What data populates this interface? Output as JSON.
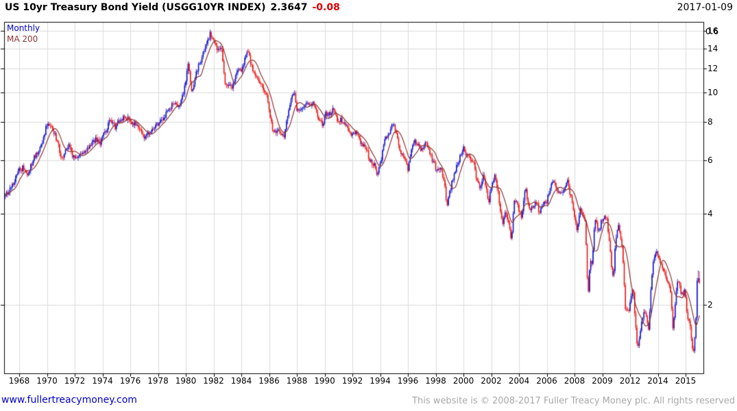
{
  "header": {
    "title": "US 10yr Treasury Bond Yield (USGG10YR INDEX)",
    "value": "2.3647",
    "change": "-0.08",
    "date": "2017-01-09"
  },
  "legend": {
    "series_label": "Monthly",
    "ma_label": "MA 200"
  },
  "footer": {
    "link": "www.fullertreacymoney.com",
    "copyright": "This website is © 2008-2017 Fuller Treacy Money plc. All rights reserved"
  },
  "colors": {
    "up_candle": "#1313cf",
    "down_candle": "#ea1515",
    "ma_line": "#8b3434",
    "legend_series": "#0000bf",
    "legend_ma": "#8b3434",
    "change_text": "#dd0000",
    "grid": "#dcdcdc",
    "border": "#000000",
    "link": "#0000cd",
    "copyright_text": "#a8a8a8"
  },
  "chart_data": {
    "type": "candlestick",
    "title": "US 10yr Treasury Bond Yield (USGG10YR INDEX)",
    "frequency": "Monthly",
    "overlay": "MA 200",
    "last_value": 2.3647,
    "change": -0.08,
    "y_scale": "log",
    "y_ticks": [
      "16",
      "14",
      "12",
      "10",
      "8",
      "6",
      "4",
      "2"
    ],
    "y_tick_values": [
      16,
      14,
      12,
      10,
      8,
      6,
      4,
      2
    ],
    "y_axis_top_overlap_label": "0.6",
    "x_tick_labels": [
      "1968",
      "1970",
      "1972",
      "1974",
      "1976",
      "1978",
      "1980",
      "1982",
      "1984",
      "1986",
      "1988",
      "1990",
      "1992",
      "1994",
      "1996",
      "1998",
      "2000",
      "2002",
      "2004",
      "2006",
      "2008",
      "2009",
      "2012",
      "2014",
      "2015"
    ],
    "x_range_years": [
      1967.0,
      2017.05
    ],
    "y_range": [
      1.19,
      17.0
    ],
    "xlabel": "",
    "ylabel": "",
    "grid": true,
    "legend_position": "top-left",
    "anchors": [
      [
        1967.0,
        4.55
      ],
      [
        1967.33,
        4.85
      ],
      [
        1967.67,
        5.15
      ],
      [
        1968.0,
        5.55
      ],
      [
        1968.25,
        5.65
      ],
      [
        1968.5,
        5.4
      ],
      [
        1968.75,
        5.55
      ],
      [
        1969.0,
        6.05
      ],
      [
        1969.33,
        6.35
      ],
      [
        1969.67,
        6.85
      ],
      [
        1969.92,
        7.65
      ],
      [
        1970.25,
        7.85
      ],
      [
        1970.5,
        7.4
      ],
      [
        1970.75,
        6.85
      ],
      [
        1971.08,
        6.05
      ],
      [
        1971.42,
        6.6
      ],
      [
        1971.58,
        6.75
      ],
      [
        1971.83,
        6.2
      ],
      [
        1972.08,
        6.05
      ],
      [
        1972.42,
        6.2
      ],
      [
        1972.75,
        6.45
      ],
      [
        1973.08,
        6.7
      ],
      [
        1973.5,
        7.05
      ],
      [
        1973.83,
        6.85
      ],
      [
        1974.17,
        7.4
      ],
      [
        1974.58,
        8.2
      ],
      [
        1974.92,
        7.7
      ],
      [
        1975.17,
        7.95
      ],
      [
        1975.67,
        8.4
      ],
      [
        1976.0,
        7.95
      ],
      [
        1976.33,
        7.9
      ],
      [
        1976.67,
        7.6
      ],
      [
        1977.0,
        7.2
      ],
      [
        1977.42,
        7.4
      ],
      [
        1977.83,
        7.7
      ],
      [
        1978.25,
        8.2
      ],
      [
        1978.67,
        8.6
      ],
      [
        1979.0,
        9.1
      ],
      [
        1979.33,
        9.1
      ],
      [
        1979.67,
        9.3
      ],
      [
        1979.92,
        10.4
      ],
      [
        1980.17,
        12.7
      ],
      [
        1980.42,
        10.0
      ],
      [
        1980.67,
        11.2
      ],
      [
        1980.92,
        12.4
      ],
      [
        1981.17,
        13.1
      ],
      [
        1981.42,
        14.3
      ],
      [
        1981.58,
        14.8
      ],
      [
        1981.75,
        15.7
      ],
      [
        1981.92,
        14.9
      ],
      [
        1982.08,
        14.5
      ],
      [
        1982.33,
        13.8
      ],
      [
        1982.58,
        14.0
      ],
      [
        1982.83,
        10.8
      ],
      [
        1983.08,
        10.5
      ],
      [
        1983.33,
        10.5
      ],
      [
        1983.67,
        11.7
      ],
      [
        1984.0,
        11.9
      ],
      [
        1984.25,
        12.8
      ],
      [
        1984.46,
        13.8
      ],
      [
        1984.75,
        12.2
      ],
      [
        1985.0,
        11.5
      ],
      [
        1985.33,
        10.9
      ],
      [
        1985.67,
        10.2
      ],
      [
        1985.92,
        9.4
      ],
      [
        1986.13,
        8.1
      ],
      [
        1986.33,
        7.3
      ],
      [
        1986.58,
        7.5
      ],
      [
        1986.83,
        7.3
      ],
      [
        1987.08,
        7.2
      ],
      [
        1987.33,
        8.4
      ],
      [
        1987.63,
        9.6
      ],
      [
        1987.79,
        10.1
      ],
      [
        1988.0,
        8.8
      ],
      [
        1988.33,
        8.9
      ],
      [
        1988.63,
        9.2
      ],
      [
        1988.92,
        9.1
      ],
      [
        1989.21,
        9.4
      ],
      [
        1989.58,
        8.1
      ],
      [
        1989.88,
        7.9
      ],
      [
        1990.08,
        8.5
      ],
      [
        1990.42,
        8.6
      ],
      [
        1990.63,
        8.9
      ],
      [
        1990.92,
        8.2
      ],
      [
        1991.25,
        8.1
      ],
      [
        1991.58,
        7.9
      ],
      [
        1991.92,
        7.3
      ],
      [
        1992.25,
        7.5
      ],
      [
        1992.58,
        6.85
      ],
      [
        1992.92,
        6.7
      ],
      [
        1993.25,
        6.0
      ],
      [
        1993.58,
        5.8
      ],
      [
        1993.79,
        5.35
      ],
      [
        1994.0,
        5.8
      ],
      [
        1994.33,
        7.0
      ],
      [
        1994.63,
        7.4
      ],
      [
        1994.88,
        7.95
      ],
      [
        1995.08,
        7.6
      ],
      [
        1995.42,
        6.5
      ],
      [
        1995.75,
        6.0
      ],
      [
        1996.0,
        5.6
      ],
      [
        1996.21,
        6.3
      ],
      [
        1996.46,
        6.9
      ],
      [
        1996.75,
        6.7
      ],
      [
        1996.96,
        6.4
      ],
      [
        1997.25,
        6.9
      ],
      [
        1997.58,
        6.3
      ],
      [
        1997.83,
        5.9
      ],
      [
        1998.08,
        5.55
      ],
      [
        1998.42,
        5.55
      ],
      [
        1998.63,
        5.0
      ],
      [
        1998.79,
        4.25
      ],
      [
        1999.0,
        4.7
      ],
      [
        1999.33,
        5.4
      ],
      [
        1999.67,
        6.0
      ],
      [
        1999.96,
        6.6
      ],
      [
        2000.21,
        6.3
      ],
      [
        2000.46,
        6.1
      ],
      [
        2000.75,
        5.8
      ],
      [
        2001.0,
        5.1
      ],
      [
        2001.21,
        4.9
      ],
      [
        2001.42,
        5.4
      ],
      [
        2001.67,
        4.8
      ],
      [
        2001.83,
        4.35
      ],
      [
        2002.04,
        5.05
      ],
      [
        2002.29,
        5.4
      ],
      [
        2002.58,
        4.4
      ],
      [
        2002.79,
        3.65
      ],
      [
        2003.0,
        4.0
      ],
      [
        2003.29,
        3.7
      ],
      [
        2003.46,
        3.15
      ],
      [
        2003.63,
        4.45
      ],
      [
        2003.92,
        4.25
      ],
      [
        2004.17,
        3.85
      ],
      [
        2004.46,
        4.85
      ],
      [
        2004.75,
        4.15
      ],
      [
        2005.0,
        4.25
      ],
      [
        2005.29,
        4.45
      ],
      [
        2005.46,
        3.95
      ],
      [
        2005.75,
        4.35
      ],
      [
        2006.0,
        4.4
      ],
      [
        2006.46,
        5.2
      ],
      [
        2006.75,
        4.65
      ],
      [
        2006.96,
        4.7
      ],
      [
        2007.21,
        4.65
      ],
      [
        2007.46,
        5.25
      ],
      [
        2007.71,
        4.6
      ],
      [
        2007.96,
        4.05
      ],
      [
        2008.17,
        3.55
      ],
      [
        2008.42,
        4.1
      ],
      [
        2008.63,
        3.85
      ],
      [
        2008.79,
        3.7
      ],
      [
        2008.96,
        2.1
      ],
      [
        2009.13,
        2.85
      ],
      [
        2009.29,
        2.75
      ],
      [
        2009.46,
        3.9
      ],
      [
        2009.71,
        3.45
      ],
      [
        2009.96,
        3.8
      ],
      [
        2010.29,
        3.95
      ],
      [
        2010.58,
        2.95
      ],
      [
        2010.79,
        2.4
      ],
      [
        2010.96,
        3.3
      ],
      [
        2011.13,
        3.7
      ],
      [
        2011.42,
        3.15
      ],
      [
        2011.67,
        1.95
      ],
      [
        2011.92,
        1.9
      ],
      [
        2012.21,
        2.3
      ],
      [
        2012.54,
        1.4
      ],
      [
        2012.79,
        1.7
      ],
      [
        2013.04,
        1.95
      ],
      [
        2013.33,
        1.65
      ],
      [
        2013.63,
        2.75
      ],
      [
        2013.96,
        3.0
      ],
      [
        2014.21,
        2.7
      ],
      [
        2014.54,
        2.55
      ],
      [
        2014.96,
        2.15
      ],
      [
        2015.08,
        1.67
      ],
      [
        2015.29,
        2.1
      ],
      [
        2015.46,
        2.45
      ],
      [
        2015.71,
        2.15
      ],
      [
        2015.96,
        2.25
      ],
      [
        2016.13,
        1.75
      ],
      [
        2016.29,
        1.8
      ],
      [
        2016.54,
        1.37
      ],
      [
        2016.71,
        1.6
      ],
      [
        2016.83,
        2.38
      ],
      [
        2016.92,
        2.55
      ],
      [
        2017.0,
        2.3647
      ]
    ],
    "last_candle": {
      "open": 2.447,
      "close": 2.3647,
      "high": 2.58,
      "low": 2.34
    }
  }
}
